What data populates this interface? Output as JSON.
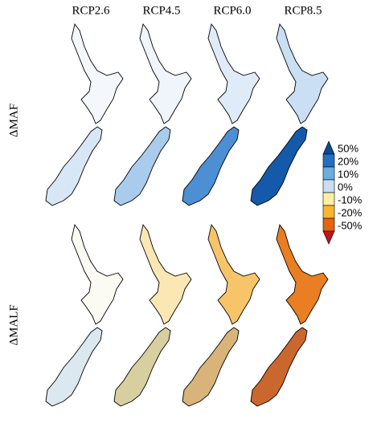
{
  "columns": [
    "RCP2.6",
    "RCP4.5",
    "RCP6.0",
    "RCP8.5"
  ],
  "rows": [
    "ΔMAF",
    "ΔMALF"
  ],
  "colorbar": {
    "labels": [
      "50%",
      "20%",
      "10%",
      "0%",
      "-10%",
      "-20%",
      "-50%"
    ],
    "colors": [
      "#0a4a96",
      "#2270c4",
      "#6badde",
      "#c9def2",
      "#fff0a0",
      "#fbb531",
      "#e5640f",
      "#c0151c"
    ]
  }
}
